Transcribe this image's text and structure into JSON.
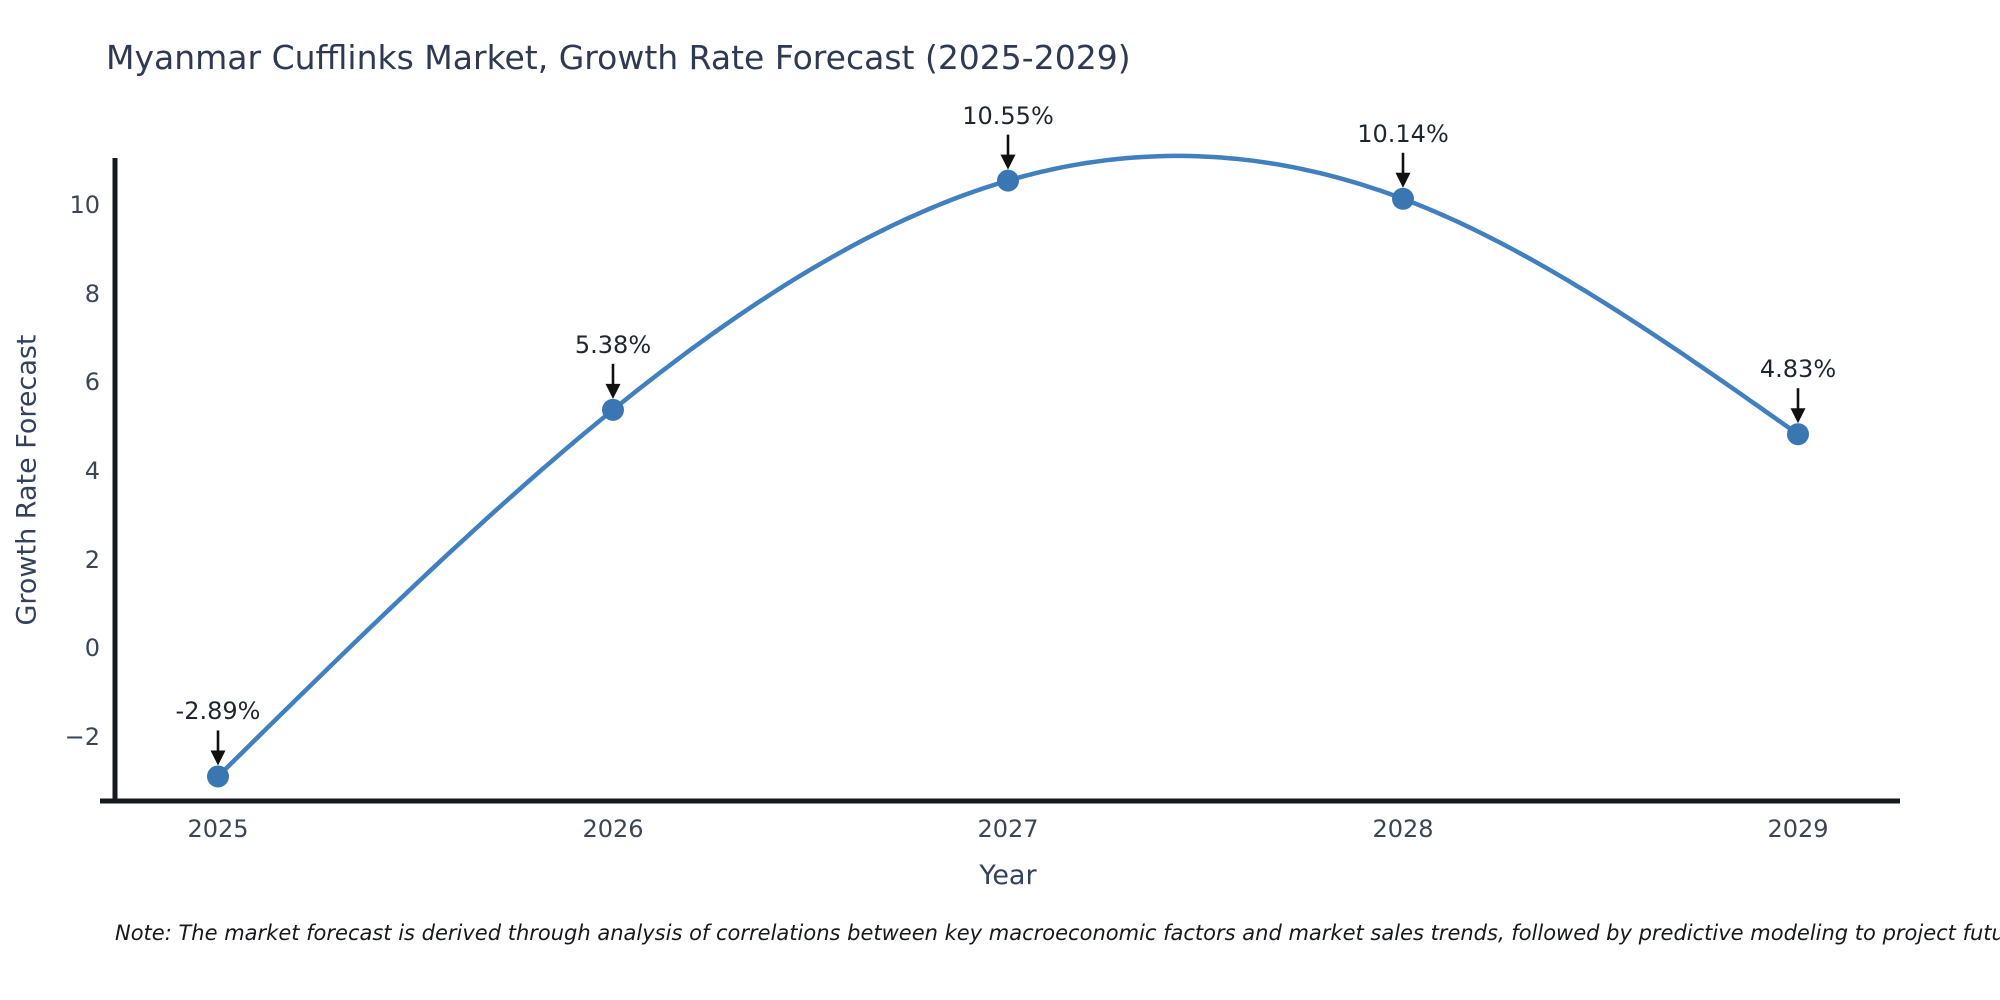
{
  "title": "Myanmar Cufflinks Market, Growth Rate Forecast (2025-2029)",
  "note": "Note: The market forecast is derived through analysis of correlations between key macroeconomic factors and market sales trends, followed by predictive modeling to project future sales",
  "chart_data": {
    "type": "line",
    "title": "Myanmar Cufflinks Market, Growth Rate Forecast (2025-2029)",
    "xlabel": "Year",
    "ylabel": "Growth Rate Forecast",
    "categories": [
      2025,
      2026,
      2027,
      2028,
      2029
    ],
    "values": [
      -2.89,
      5.38,
      10.55,
      10.14,
      4.83
    ],
    "point_labels": [
      "-2.89%",
      "5.38%",
      "10.55%",
      "10.14%",
      "4.83%"
    ],
    "line_shape": "spline",
    "grid": false,
    "legend_position": "none",
    "ylim": [
      -3.6,
      11.6
    ],
    "yticks": [
      10,
      8,
      6,
      4,
      2,
      0,
      -2
    ],
    "ytick_labels": [
      "10",
      "8",
      "6",
      "4",
      "2",
      "0",
      "−2"
    ],
    "colors": {
      "line": "#4080bf",
      "marker": "#3a76b1",
      "axis": "#16191d",
      "arrow": "#111111"
    }
  }
}
